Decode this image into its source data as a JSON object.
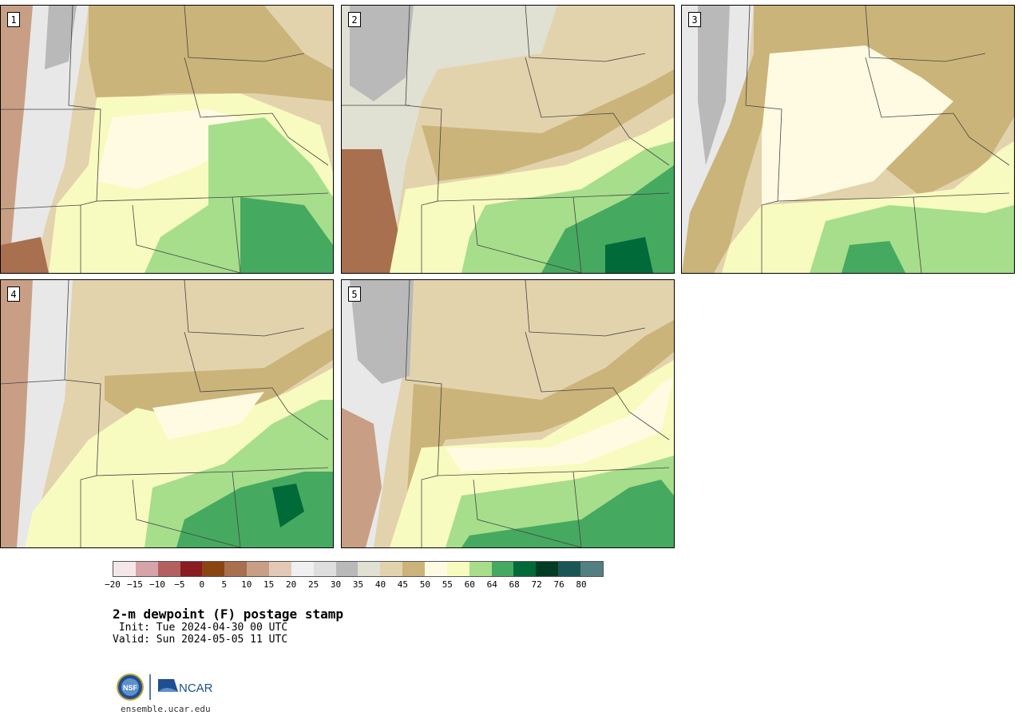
{
  "panels": [
    {
      "label": "1"
    },
    {
      "label": "2"
    },
    {
      "label": "3"
    },
    {
      "label": "4"
    },
    {
      "label": "5"
    }
  ],
  "colorbar": {
    "colors": [
      "#f5e6ea",
      "#d5a3a8",
      "#b4605f",
      "#8a1c22",
      "#8b4513",
      "#a8704e",
      "#c89f85",
      "#e3c9b5",
      "#f0f0f0",
      "#dedede",
      "#b9b9b9",
      "#e0e0d3",
      "#e3d3ad",
      "#cbb47a",
      "#fffbe3",
      "#f8fbbf",
      "#a6de8c",
      "#46a960",
      "#006a39",
      "#003d23",
      "#1b5656",
      "#537e82"
    ],
    "ticks": [
      "−20",
      "−15",
      "−10",
      "−5",
      "0",
      "5",
      "10",
      "15",
      "20",
      "25",
      "30",
      "35",
      "40",
      "45",
      "50",
      "55",
      "60",
      "64",
      "68",
      "72",
      "76",
      "80"
    ]
  },
  "title": "2-m dewpoint (F) postage stamp",
  "init": " Init: Tue 2024-04-30 00 UTC",
  "valid": "Valid: Sun 2024-05-05 11 UTC",
  "logo": {
    "nsf": "NSF",
    "ncar": "NCAR"
  },
  "site": "ensemble.ucar.edu"
}
